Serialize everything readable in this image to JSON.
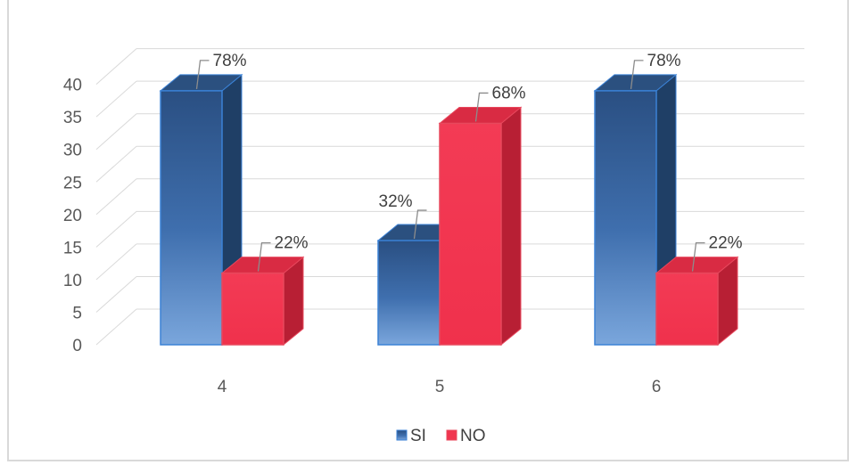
{
  "chart_data": {
    "type": "bar",
    "title": "",
    "xlabel": "",
    "ylabel": "",
    "categories": [
      "4",
      "5",
      "6"
    ],
    "ylim": [
      0,
      40
    ],
    "yticks": [
      0,
      5,
      10,
      15,
      20,
      25,
      30,
      35,
      40
    ],
    "grid": true,
    "three_d": true,
    "legend_position": "bottom",
    "series": [
      {
        "name": "SI",
        "color": "#2e5f9a",
        "values": [
          39,
          16,
          39
        ],
        "labels": [
          "78%",
          "32%",
          "78%"
        ]
      },
      {
        "name": "NO",
        "color": "#f0354f",
        "values": [
          11,
          34,
          11
        ],
        "labels": [
          "22%",
          "68%",
          "22%"
        ]
      }
    ]
  }
}
